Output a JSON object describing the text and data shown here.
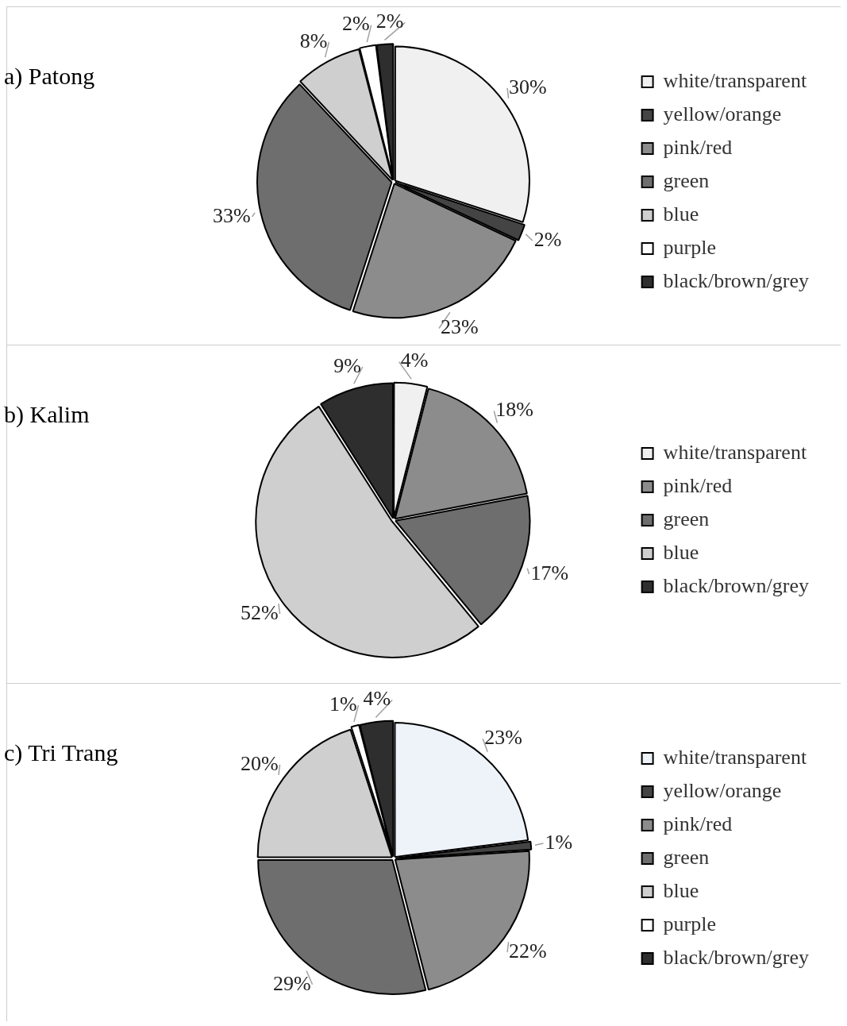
{
  "chart_data": [
    {
      "type": "pie",
      "title": "a) Patong",
      "categories": [
        "white/transparent",
        "yellow/orange",
        "pink/red",
        "green",
        "blue",
        "purple",
        "black/brown/grey"
      ],
      "values": [
        30,
        2,
        23,
        33,
        8,
        2,
        2
      ],
      "value_labels": [
        "30%",
        "2%",
        "23%",
        "33%",
        "8%",
        "2%",
        "2%"
      ],
      "colors": [
        "#f0f0f0",
        "#444444",
        "#8c8c8c",
        "#6e6e6e",
        "#cfcfcf",
        "#ffffff",
        "#2e2e2e"
      ],
      "legend": "right"
    },
    {
      "type": "pie",
      "title": "b) Kalim",
      "categories": [
        "white/transparent",
        "pink/red",
        "green",
        "blue",
        "black/brown/grey"
      ],
      "values": [
        4,
        18,
        17,
        52,
        9
      ],
      "value_labels": [
        "4%",
        "18%",
        "17%",
        "52%",
        "9%"
      ],
      "colors": [
        "#f0f0f0",
        "#8c8c8c",
        "#6e6e6e",
        "#cfcfcf",
        "#2e2e2e"
      ],
      "legend": "right"
    },
    {
      "type": "pie",
      "title": "c) Tri Trang",
      "categories": [
        "white/transparent",
        "yellow/orange",
        "pink/red",
        "green",
        "blue",
        "purple",
        "black/brown/grey"
      ],
      "values": [
        23,
        1,
        22,
        29,
        20,
        1,
        4
      ],
      "value_labels": [
        "23%",
        "1%",
        "22%",
        "29%",
        "20%",
        "1%",
        "4%"
      ],
      "colors": [
        "#eef3fa",
        "#444444",
        "#8c8c8c",
        "#6e6e6e",
        "#cfcfcf",
        "#ffffff",
        "#2e2e2e"
      ],
      "legend": "right"
    }
  ]
}
